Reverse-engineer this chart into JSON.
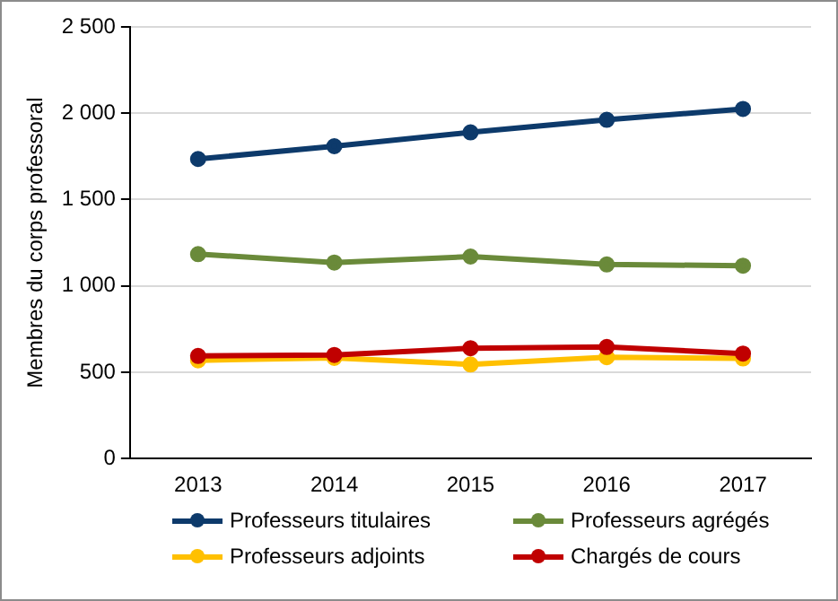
{
  "chart_data": {
    "type": "line",
    "ylabel": "Membres du corps professoral",
    "categories": [
      "2013",
      "2014",
      "2015",
      "2016",
      "2017"
    ],
    "series": [
      {
        "name": "Professeurs titulaires",
        "color": "#0d3a6b",
        "values": [
          1735,
          1809,
          1889,
          1962,
          2025
        ]
      },
      {
        "name": "Professeurs agrégés",
        "color": "#6a8a3a",
        "values": [
          1184,
          1135,
          1170,
          1124,
          1117
        ]
      },
      {
        "name": "Professeurs adjoints",
        "color": "#ffc000",
        "values": [
          569,
          583,
          545,
          587,
          580
        ]
      },
      {
        "name": "Chargés de cours",
        "color": "#c00000",
        "values": [
          594,
          600,
          639,
          646,
          608
        ]
      }
    ],
    "ylim": [
      0,
      2500
    ],
    "yticks": [
      0,
      {
        "value": 500,
        "label": "500"
      },
      {
        "value": 1000,
        "label": "1 000"
      },
      {
        "value": 1500,
        "label": "1 500"
      },
      {
        "value": 2000,
        "label": "2 000"
      },
      {
        "value": 2500,
        "label": "2 500"
      }
    ],
    "grid": "y",
    "legend": "bottom",
    "marker": "circle",
    "line_style": "solid"
  }
}
